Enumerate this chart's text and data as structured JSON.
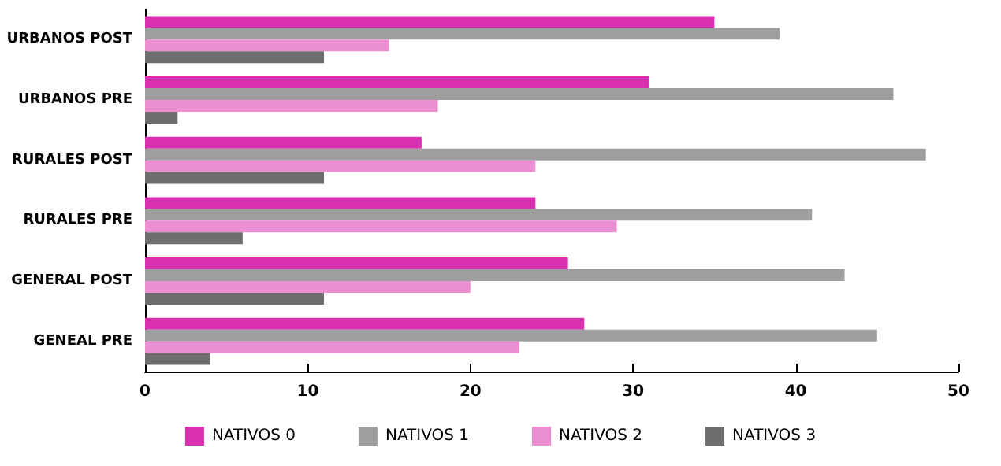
{
  "chart_data": {
    "type": "bar",
    "orientation": "horizontal",
    "categories": [
      "URBANOS POST",
      "URBANOS PRE",
      "RURALES POST",
      "RURALES PRE",
      "GENERAL POST",
      "GENEAL PRE"
    ],
    "series": [
      {
        "name": "NATIVOS 0",
        "color": "#d930b0",
        "values": [
          35,
          31,
          17,
          24,
          26,
          27
        ]
      },
      {
        "name": "NATIVOS 1",
        "color": "#9e9e9e",
        "values": [
          39,
          46,
          48,
          41,
          43,
          45
        ]
      },
      {
        "name": "NATIVOS 2",
        "color": "#ec8fd2",
        "values": [
          15,
          18,
          24,
          29,
          20,
          23
        ]
      },
      {
        "name": "NATIVOS 3",
        "color": "#6e6e6e",
        "values": [
          11,
          2,
          11,
          6,
          11,
          4
        ]
      }
    ],
    "xlim": [
      0,
      50
    ],
    "xticks": [
      0,
      10,
      20,
      30,
      40,
      50
    ],
    "grid": false,
    "legend": "bottom"
  }
}
